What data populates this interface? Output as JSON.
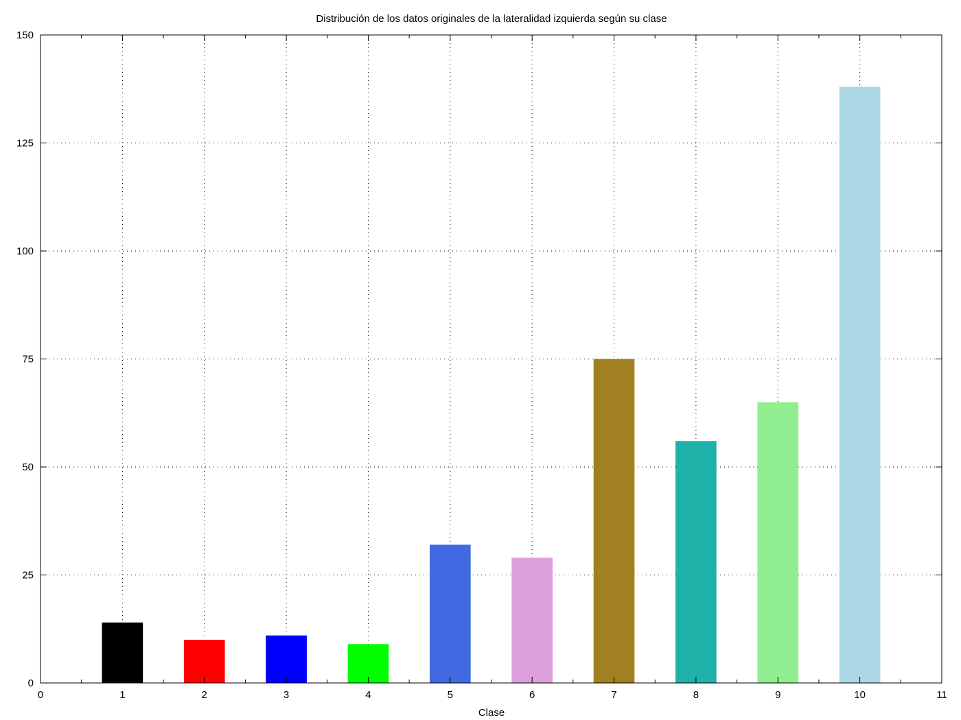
{
  "chart_data": {
    "type": "bar",
    "title": "Distribución de los datos originales de la lateralidad izquierda según su clase",
    "xlabel": "Clase",
    "ylabel": "",
    "categories": [
      1,
      2,
      3,
      4,
      5,
      6,
      7,
      8,
      9,
      10
    ],
    "values": [
      14,
      10,
      11,
      9,
      32,
      29,
      75,
      56,
      65,
      138
    ],
    "colors": [
      "#000000",
      "#ff0000",
      "#0000ff",
      "#00ff00",
      "#4169e1",
      "#dda0dd",
      "#a08020",
      "#20b2aa",
      "#90ee90",
      "#add8e6"
    ],
    "xlim": [
      0,
      11
    ],
    "ylim": [
      0,
      150
    ],
    "xticks": [
      0,
      1,
      2,
      3,
      4,
      5,
      6,
      7,
      8,
      9,
      10,
      11
    ],
    "yticks": [
      0,
      25,
      50,
      75,
      100,
      125,
      150
    ],
    "bar_width": 0.5,
    "grid": true,
    "legend": "none"
  }
}
